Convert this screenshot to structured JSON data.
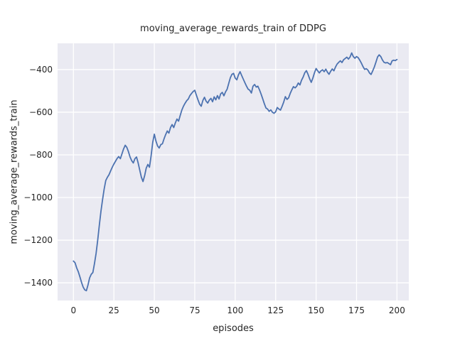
{
  "style": {
    "figure_bg": "#ffffff",
    "axes_bg": "#eaeaf2",
    "grid_color": "#ffffff",
    "text_color": "#262626",
    "line_color": "#4c72b0"
  },
  "chart_data": {
    "type": "line",
    "title": "moving_average_rewards_train of DDPG",
    "xlabel": "episodes",
    "ylabel": "moving_average_rewards_train",
    "x_ticks": [
      0,
      25,
      50,
      75,
      100,
      125,
      150,
      175,
      200
    ],
    "y_ticks": [
      -400,
      -600,
      -800,
      -1000,
      -1200,
      -1400
    ],
    "xlim": [
      -9.8,
      207.3
    ],
    "ylim": [
      -1483,
      -277
    ],
    "grid": true,
    "legend_position": "none",
    "series": [
      {
        "name": "moving_average_rewards_train",
        "color": "#4c72b0",
        "x_start": 0,
        "x_step": 1,
        "values": [
          -1298,
          -1306,
          -1330,
          -1348,
          -1372,
          -1398,
          -1420,
          -1433,
          -1437,
          -1410,
          -1377,
          -1360,
          -1352,
          -1310,
          -1262,
          -1200,
          -1130,
          -1065,
          -1010,
          -960,
          -920,
          -905,
          -893,
          -875,
          -858,
          -843,
          -830,
          -817,
          -808,
          -818,
          -795,
          -772,
          -755,
          -765,
          -785,
          -810,
          -827,
          -838,
          -818,
          -810,
          -838,
          -872,
          -905,
          -925,
          -898,
          -862,
          -845,
          -858,
          -805,
          -742,
          -703,
          -735,
          -758,
          -768,
          -752,
          -748,
          -725,
          -705,
          -688,
          -698,
          -672,
          -658,
          -672,
          -650,
          -632,
          -642,
          -615,
          -590,
          -572,
          -558,
          -546,
          -538,
          -522,
          -512,
          -503,
          -497,
          -520,
          -542,
          -562,
          -572,
          -545,
          -530,
          -548,
          -557,
          -543,
          -535,
          -551,
          -528,
          -542,
          -522,
          -538,
          -514,
          -507,
          -523,
          -505,
          -492,
          -465,
          -438,
          -422,
          -418,
          -440,
          -448,
          -425,
          -410,
          -428,
          -445,
          -462,
          -478,
          -492,
          -497,
          -510,
          -478,
          -470,
          -482,
          -478,
          -495,
          -515,
          -537,
          -560,
          -580,
          -585,
          -596,
          -589,
          -600,
          -605,
          -598,
          -578,
          -585,
          -590,
          -572,
          -552,
          -527,
          -540,
          -533,
          -512,
          -495,
          -480,
          -486,
          -478,
          -463,
          -472,
          -450,
          -435,
          -415,
          -405,
          -422,
          -443,
          -460,
          -440,
          -415,
          -395,
          -406,
          -416,
          -406,
          -401,
          -410,
          -398,
          -412,
          -422,
          -408,
          -397,
          -406,
          -388,
          -374,
          -366,
          -359,
          -367,
          -354,
          -348,
          -342,
          -351,
          -341,
          -322,
          -339,
          -347,
          -339,
          -344,
          -356,
          -370,
          -386,
          -399,
          -396,
          -402,
          -416,
          -423,
          -406,
          -388,
          -365,
          -341,
          -331,
          -339,
          -355,
          -366,
          -369,
          -367,
          -372,
          -377,
          -359,
          -356,
          -358,
          -353
        ]
      }
    ]
  }
}
